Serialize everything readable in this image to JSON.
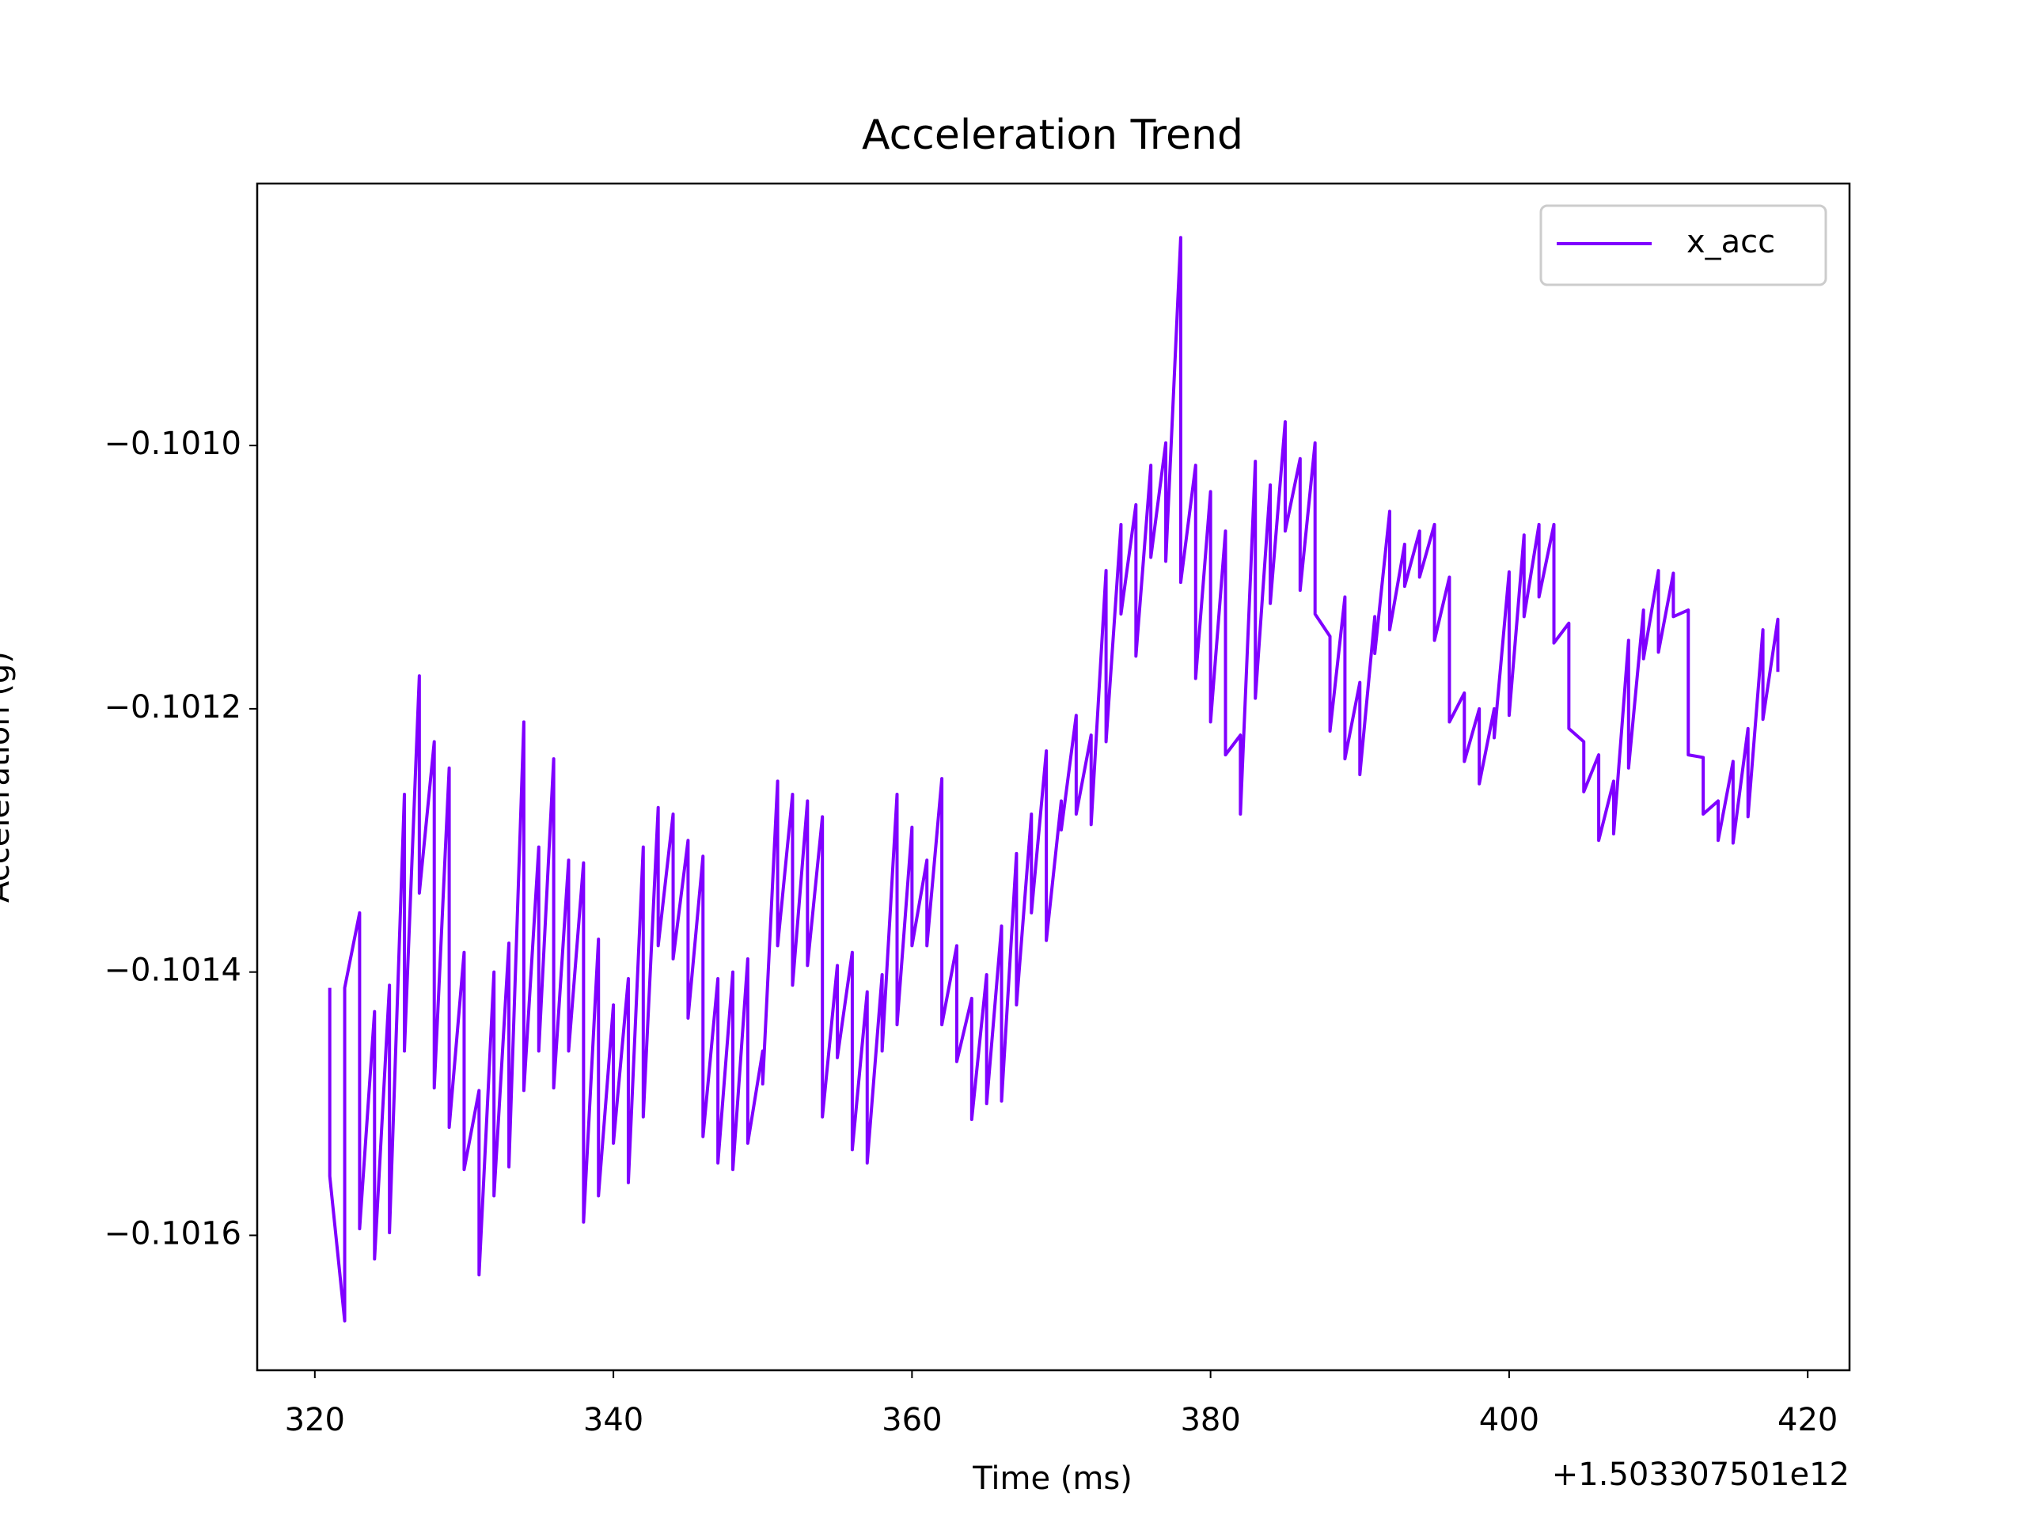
{
  "chart_data": {
    "type": "line",
    "title": "Acceleration Trend",
    "xlabel": "Time (ms)",
    "ylabel": "Acceleration (g)",
    "x_offset_label": "+1.503307501e12",
    "x": [
      321,
      321,
      322,
      322,
      323,
      323,
      324,
      324,
      325,
      325,
      326,
      326,
      327,
      327,
      328,
      328,
      329,
      329,
      330,
      330,
      331,
      331,
      332,
      332,
      333,
      333,
      334,
      334,
      335,
      335,
      336,
      336,
      337,
      337,
      338,
      338,
      339,
      339,
      340,
      340,
      341,
      341,
      342,
      342,
      343,
      343,
      344,
      344,
      345,
      345,
      346,
      346,
      347,
      347,
      348,
      348,
      349,
      349,
      350,
      350,
      351,
      351,
      352,
      352,
      353,
      353,
      354,
      354,
      355,
      355,
      356,
      356,
      357,
      357,
      358,
      358,
      359,
      359,
      360,
      360,
      361,
      361,
      362,
      362,
      363,
      363,
      364,
      364,
      365,
      365,
      366,
      366,
      367,
      367,
      368,
      368,
      369,
      369,
      370,
      370,
      371,
      371,
      372,
      372,
      373,
      373,
      374,
      374,
      375,
      375,
      376,
      376,
      377,
      377,
      378,
      378,
      379,
      379,
      380,
      380,
      381,
      381,
      382,
      382,
      383,
      383,
      384,
      384,
      385,
      385,
      386,
      386,
      387,
      387,
      388,
      388,
      389,
      389,
      390,
      390,
      391,
      391,
      392,
      392,
      393,
      393,
      394,
      394,
      395,
      395,
      396,
      396,
      397,
      397,
      398,
      398,
      399,
      399,
      400,
      400,
      401,
      401,
      402,
      402,
      403,
      403,
      404,
      404,
      405,
      405,
      406,
      406,
      407,
      407,
      408,
      408,
      409,
      409,
      410,
      410,
      411,
      411,
      412,
      412,
      413,
      413,
      414,
      414,
      415,
      415,
      416,
      416,
      417,
      417,
      418,
      418
    ],
    "series": [
      {
        "name": "x_acc",
        "color": "#7f00ff",
        "values": [
          -0.101412,
          -0.101555,
          -0.101665,
          -0.101412,
          -0.101355,
          -0.101595,
          -0.10143,
          -0.101618,
          -0.10141,
          -0.101598,
          -0.101265,
          -0.10146,
          -0.101175,
          -0.10134,
          -0.101225,
          -0.101488,
          -0.101245,
          -0.101518,
          -0.101385,
          -0.10155,
          -0.10149,
          -0.10163,
          -0.1014,
          -0.10157,
          -0.101378,
          -0.101548,
          -0.10121,
          -0.10149,
          -0.101305,
          -0.10146,
          -0.101238,
          -0.101488,
          -0.101315,
          -0.10146,
          -0.101317,
          -0.10159,
          -0.101375,
          -0.10157,
          -0.101425,
          -0.10153,
          -0.101405,
          -0.10156,
          -0.101305,
          -0.10151,
          -0.101275,
          -0.10138,
          -0.10128,
          -0.10139,
          -0.1013,
          -0.101435,
          -0.101312,
          -0.101525,
          -0.101405,
          -0.101545,
          -0.1014,
          -0.10155,
          -0.10139,
          -0.10153,
          -0.10146,
          -0.101485,
          -0.101255,
          -0.10138,
          -0.101265,
          -0.10141,
          -0.10127,
          -0.101395,
          -0.101282,
          -0.10151,
          -0.101395,
          -0.101465,
          -0.101385,
          -0.101535,
          -0.101415,
          -0.101545,
          -0.101402,
          -0.10146,
          -0.101265,
          -0.10144,
          -0.10129,
          -0.10138,
          -0.101315,
          -0.10138,
          -0.101253,
          -0.10144,
          -0.10138,
          -0.101468,
          -0.10142,
          -0.101512,
          -0.101402,
          -0.1015,
          -0.101365,
          -0.101498,
          -0.10131,
          -0.101425,
          -0.10128,
          -0.101355,
          -0.101232,
          -0.101376,
          -0.10127,
          -0.101292,
          -0.101205,
          -0.10128,
          -0.10122,
          -0.101288,
          -0.101095,
          -0.101225,
          -0.10106,
          -0.101128,
          -0.101045,
          -0.10116,
          -0.101015,
          -0.101085,
          -0.100998,
          -0.101088,
          -0.100842,
          -0.101104,
          -0.101015,
          -0.101177,
          -0.101035,
          -0.10121,
          -0.101065,
          -0.101235,
          -0.10122,
          -0.10128,
          -0.101012,
          -0.101192,
          -0.10103,
          -0.10112,
          -0.100982,
          -0.101065,
          -0.10101,
          -0.10111,
          -0.100998,
          -0.101128,
          -0.101145,
          -0.101217,
          -0.101115,
          -0.101238,
          -0.10118,
          -0.10125,
          -0.10113,
          -0.101158,
          -0.10105,
          -0.10114,
          -0.101075,
          -0.101107,
          -0.101065,
          -0.1011,
          -0.10106,
          -0.101148,
          -0.1011,
          -0.10121,
          -0.101188,
          -0.10124,
          -0.1012,
          -0.101257,
          -0.1012,
          -0.101222,
          -0.101096,
          -0.101205,
          -0.101068,
          -0.10113,
          -0.10106,
          -0.101115,
          -0.10106,
          -0.10115,
          -0.101135,
          -0.101215,
          -0.101225,
          -0.101263,
          -0.101235,
          -0.1013,
          -0.101255,
          -0.101295,
          -0.101148,
          -0.101245,
          -0.101125,
          -0.101162,
          -0.101095,
          -0.101157,
          -0.101097,
          -0.10113,
          -0.101125,
          -0.101235,
          -0.101237,
          -0.10128,
          -0.10127,
          -0.1013,
          -0.10124,
          -0.101302,
          -0.101215,
          -0.101282,
          -0.10114,
          -0.101208,
          -0.101132,
          -0.101172
        ]
      }
    ],
    "xlim": [
      316.14,
      422.8
    ],
    "xticks": [
      320,
      340,
      360,
      380,
      400,
      420
    ],
    "ylim": [
      -0.1017025,
      -0.100801
    ],
    "yticks": [
      {
        "value": -0.1016,
        "label": "−0.1016"
      },
      {
        "value": -0.1014,
        "label": "−0.1014"
      },
      {
        "value": -0.1012,
        "label": "−0.1012"
      },
      {
        "value": -0.101,
        "label": "−0.1010"
      }
    ],
    "grid": false,
    "legend": "upper right"
  }
}
